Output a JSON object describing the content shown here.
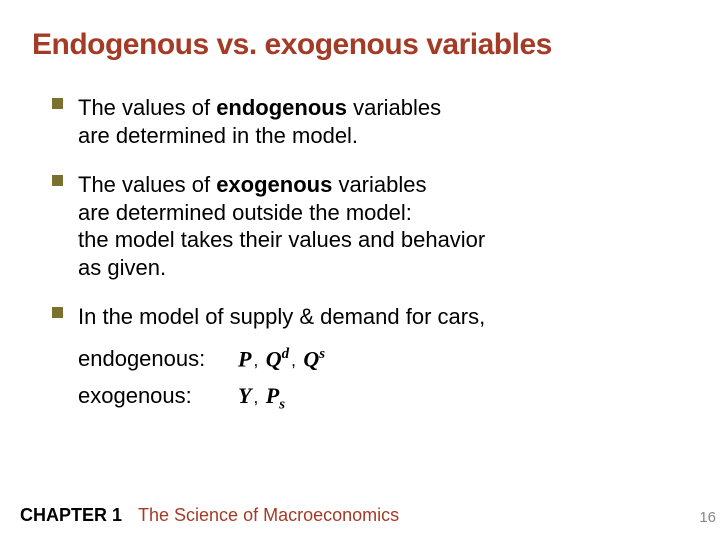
{
  "title": "Endogenous vs. exogenous variables",
  "title_color": "#a43b26",
  "bullet_marker_color": "#7a712f",
  "background_color": "#ffffff",
  "bullets": {
    "b1_pre": "The values of ",
    "b1_bold": "endogenous",
    "b1_post": " variables",
    "b1_line2": "are determined in the model.",
    "b2_pre": "The values of ",
    "b2_bold": "exogenous",
    "b2_post": " variables",
    "b2_line2": "are determined outside the model:",
    "b2_line3": "the model takes their values and behavior",
    "b2_line4": "as given.",
    "b3_line1": "In the model of supply & demand for cars,"
  },
  "sub": {
    "endo_label": "endogenous:",
    "exo_label": "exogenous:",
    "P": "P",
    "Q": "Q",
    "d": "d",
    "s": "s",
    "Y": "Y",
    "Ps": "P",
    "sub_s": "s"
  },
  "footer": {
    "chapter": "CHAPTER 1",
    "title": "The Science of Macroeconomics",
    "page": "16"
  }
}
